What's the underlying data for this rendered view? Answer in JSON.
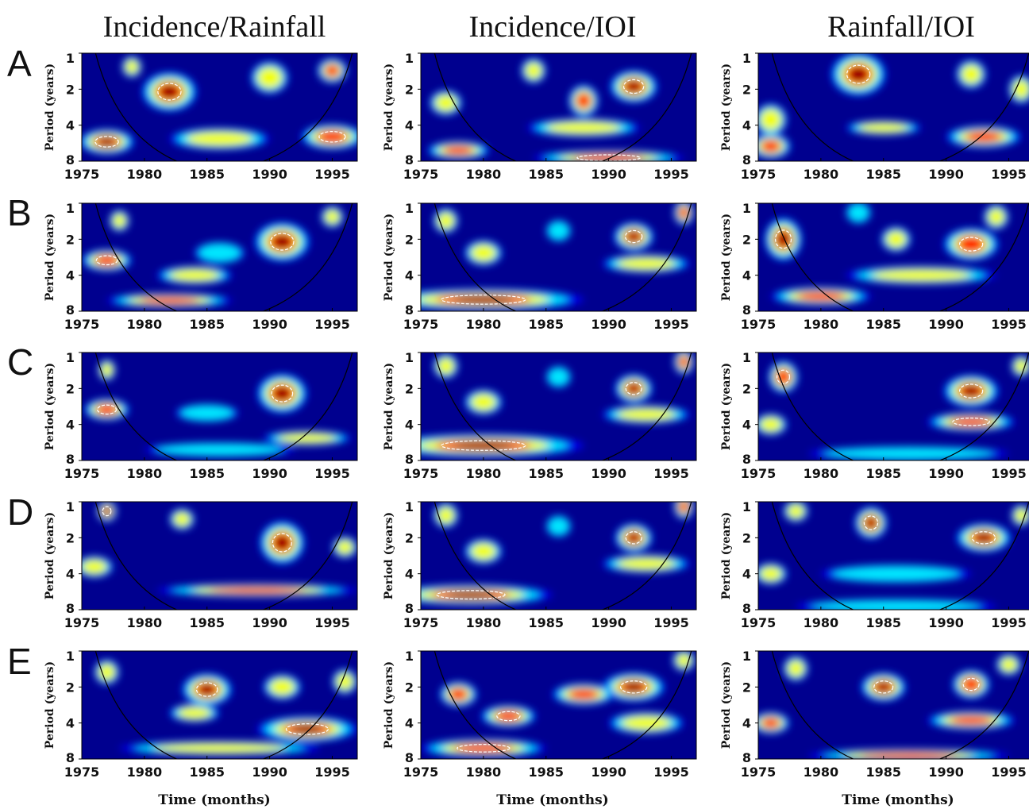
{
  "figure": {
    "columns": [
      "Incidence/Rainfall",
      "Incidence/IOI",
      "Rainfall/IOI"
    ],
    "rows": [
      "A",
      "B",
      "C",
      "D",
      "E"
    ],
    "x_axis_label": "Time (months)",
    "y_axis_label": "Period (years)"
  },
  "chart_data": {
    "type": "heatmap",
    "description_kind": "wavelet coherence panels, 5 rows x 3 columns",
    "x_ticks": [
      1975,
      1980,
      1985,
      1990,
      1995
    ],
    "xlim": [
      1975,
      1997
    ],
    "y_ticks": [
      1,
      2,
      4,
      8
    ],
    "ylim": [
      1,
      8
    ],
    "y_scale": "log2",
    "y_inverted": true,
    "colormap": [
      "#00008f",
      "#0000ff",
      "#00ffff",
      "#ffff00",
      "#ff0000",
      "#800000"
    ],
    "cone_of_influence": true,
    "significance_contours": "white dashed",
    "hotspots": [
      [
        [
          [
            1982,
            2.1,
            2.2,
            0.55,
            1.0
          ],
          [
            1977,
            5.5,
            2.2,
            0.35,
            0.95
          ],
          [
            1995,
            5.0,
            2.5,
            0.35,
            0.85
          ],
          [
            1990,
            1.6,
            1.5,
            0.45,
            0.6
          ],
          [
            1995,
            1.4,
            1.2,
            0.35,
            0.7
          ],
          [
            1986,
            5.2,
            4.0,
            0.3,
            0.55
          ],
          [
            1979,
            1.3,
            0.8,
            0.3,
            0.5
          ]
        ],
        [
          [
            1992,
            1.9,
            1.9,
            0.45,
            1.0
          ],
          [
            1988,
            2.5,
            1.2,
            0.45,
            0.7
          ],
          [
            1977,
            2.6,
            1.3,
            0.35,
            0.65
          ],
          [
            1984,
            1.4,
            1.0,
            0.35,
            0.55
          ],
          [
            1988,
            4.2,
            4.5,
            0.25,
            0.5
          ],
          [
            1990,
            7.5,
            6.0,
            0.2,
            0.85
          ],
          [
            1978,
            6.5,
            2.5,
            0.25,
            0.75
          ]
        ],
        [
          [
            1983,
            1.5,
            2.2,
            0.6,
            1.0
          ],
          [
            1976,
            3.6,
            1.3,
            0.45,
            0.6
          ],
          [
            1976,
            6.0,
            1.6,
            0.35,
            0.75
          ],
          [
            1992,
            1.5,
            1.2,
            0.4,
            0.55
          ],
          [
            1993,
            5.0,
            3.0,
            0.3,
            0.75
          ],
          [
            1996,
            2.0,
            1.0,
            0.4,
            0.5
          ],
          [
            1985,
            4.2,
            3.0,
            0.2,
            0.5
          ]
        ]
      ],
      [
        [
          [
            1991,
            2.1,
            2.2,
            0.55,
            1.0
          ],
          [
            1977,
            3.0,
            2.0,
            0.3,
            0.85
          ],
          [
            1978,
            1.4,
            0.8,
            0.3,
            0.6
          ],
          [
            1984,
            4.0,
            3.0,
            0.25,
            0.6
          ],
          [
            1982,
            6.5,
            5.0,
            0.2,
            0.7
          ],
          [
            1995,
            1.3,
            0.9,
            0.3,
            0.55
          ],
          [
            1986,
            2.6,
            2.0,
            0.3,
            0.35
          ]
        ],
        [
          [
            1980,
            6.4,
            8.0,
            0.3,
            1.0
          ],
          [
            1992,
            1.9,
            1.6,
            0.4,
            0.9
          ],
          [
            1980,
            2.6,
            1.5,
            0.35,
            0.65
          ],
          [
            1993,
            3.2,
            3.5,
            0.25,
            0.6
          ],
          [
            1977,
            1.4,
            1.0,
            0.35,
            0.6
          ],
          [
            1986,
            1.7,
            1.0,
            0.3,
            0.45
          ],
          [
            1996,
            1.2,
            0.8,
            0.35,
            0.7
          ]
        ],
        [
          [
            1977,
            2.0,
            1.5,
            0.6,
            1.0
          ],
          [
            1992,
            2.2,
            2.2,
            0.45,
            0.8
          ],
          [
            1986,
            2.0,
            1.2,
            0.35,
            0.55
          ],
          [
            1980,
            6.0,
            4.0,
            0.25,
            0.7
          ],
          [
            1988,
            4.0,
            6.0,
            0.25,
            0.55
          ],
          [
            1994,
            1.3,
            1.0,
            0.35,
            0.6
          ],
          [
            1983,
            1.2,
            1.0,
            0.3,
            0.45
          ]
        ]
      ],
      [
        [
          [
            1991,
            2.2,
            2.0,
            0.55,
            1.0
          ],
          [
            1977,
            3.0,
            1.8,
            0.3,
            0.85
          ],
          [
            1977,
            1.4,
            0.7,
            0.3,
            0.55
          ],
          [
            1993,
            5.2,
            3.5,
            0.2,
            0.6
          ],
          [
            1985,
            3.2,
            2.5,
            0.25,
            0.4
          ],
          [
            1986,
            6.5,
            6.0,
            0.2,
            0.4
          ]
        ],
        [
          [
            1980,
            6.0,
            8.0,
            0.32,
            1.0
          ],
          [
            1992,
            2.0,
            1.5,
            0.4,
            0.9
          ],
          [
            1980,
            2.6,
            1.5,
            0.35,
            0.65
          ],
          [
            1993,
            3.3,
            3.5,
            0.25,
            0.6
          ],
          [
            1977,
            1.3,
            1.0,
            0.35,
            0.6
          ],
          [
            1986,
            1.6,
            1.0,
            0.3,
            0.45
          ],
          [
            1996,
            1.2,
            0.8,
            0.35,
            0.7
          ]
        ],
        [
          [
            1992,
            2.1,
            2.2,
            0.45,
            1.0
          ],
          [
            1977,
            1.6,
            1.2,
            0.45,
            0.85
          ],
          [
            1992,
            3.8,
            3.5,
            0.25,
            0.8
          ],
          [
            1976,
            4.0,
            1.3,
            0.3,
            0.6
          ],
          [
            1987,
            7.0,
            8.0,
            0.2,
            0.4
          ],
          [
            1996,
            1.3,
            0.8,
            0.3,
            0.55
          ]
        ]
      ],
      [
        [
          [
            1991,
            2.2,
            1.8,
            0.6,
            1.0
          ],
          [
            1977,
            1.2,
            0.8,
            0.3,
            0.9
          ],
          [
            1983,
            1.4,
            1.0,
            0.3,
            0.5
          ],
          [
            1989,
            5.5,
            8.0,
            0.18,
            0.7
          ],
          [
            1976,
            3.5,
            1.5,
            0.3,
            0.55
          ],
          [
            1996,
            2.4,
            1.0,
            0.3,
            0.65
          ]
        ],
        [
          [
            1979,
            6.0,
            6.5,
            0.28,
            1.0
          ],
          [
            1992,
            2.0,
            1.5,
            0.4,
            0.9
          ],
          [
            1980,
            2.6,
            1.5,
            0.35,
            0.65
          ],
          [
            1993,
            3.3,
            3.5,
            0.25,
            0.6
          ],
          [
            1977,
            1.3,
            1.0,
            0.35,
            0.6
          ],
          [
            1986,
            1.6,
            1.0,
            0.3,
            0.45
          ],
          [
            1996,
            1.1,
            0.8,
            0.35,
            0.7
          ]
        ],
        [
          [
            1984,
            1.5,
            1.3,
            0.45,
            0.95
          ],
          [
            1993,
            2.0,
            2.2,
            0.4,
            0.95
          ],
          [
            1976,
            4.0,
            1.3,
            0.3,
            0.65
          ],
          [
            1986,
            4.0,
            6.0,
            0.25,
            0.45
          ],
          [
            1978,
            1.2,
            1.0,
            0.3,
            0.55
          ],
          [
            1996,
            1.3,
            0.8,
            0.3,
            0.6
          ],
          [
            1986,
            7.5,
            8.0,
            0.2,
            0.4
          ]
        ]
      ],
      [
        [
          [
            1985,
            2.1,
            2.0,
            0.45,
            1.0
          ],
          [
            1993,
            4.5,
            4.0,
            0.35,
            0.9
          ],
          [
            1977,
            1.5,
            1.0,
            0.35,
            0.6
          ],
          [
            1991,
            2.0,
            1.5,
            0.35,
            0.55
          ],
          [
            1996,
            1.8,
            1.0,
            0.35,
            0.6
          ],
          [
            1984,
            3.3,
            2.0,
            0.25,
            0.5
          ],
          [
            1986,
            6.5,
            8.0,
            0.2,
            0.55
          ]
        ],
        [
          [
            1992,
            2.0,
            2.5,
            0.4,
            0.95
          ],
          [
            1982,
            3.5,
            2.2,
            0.3,
            0.8
          ],
          [
            1988,
            2.3,
            2.5,
            0.3,
            0.7
          ],
          [
            1978,
            2.3,
            1.5,
            0.35,
            0.7
          ],
          [
            1980,
            6.5,
            5.0,
            0.25,
            0.85
          ],
          [
            1993,
            4.0,
            3.0,
            0.3,
            0.65
          ],
          [
            1996,
            1.2,
            0.9,
            0.3,
            0.6
          ]
        ],
        [
          [
            1985,
            2.0,
            1.8,
            0.4,
            0.9
          ],
          [
            1992,
            1.9,
            1.5,
            0.4,
            0.85
          ],
          [
            1992,
            3.8,
            3.5,
            0.25,
            0.75
          ],
          [
            1978,
            1.4,
            1.0,
            0.35,
            0.65
          ],
          [
            1976,
            4.0,
            1.5,
            0.3,
            0.7
          ],
          [
            1987,
            7.5,
            8.0,
            0.18,
            0.75
          ],
          [
            1995,
            1.3,
            1.0,
            0.3,
            0.6
          ]
        ]
      ]
    ]
  }
}
